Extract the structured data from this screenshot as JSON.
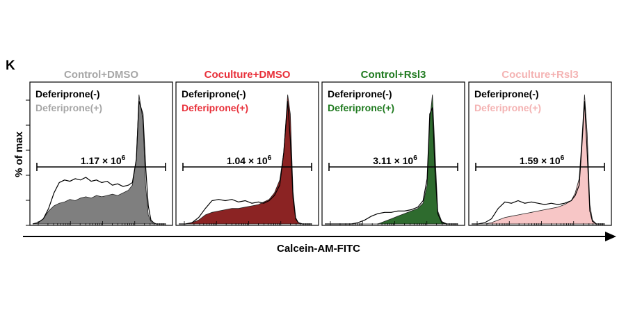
{
  "figure": {
    "panel_label": "K",
    "ylabel": "% of max",
    "xlabel": "Calcein-AM-FITC"
  },
  "chart_data": [
    {
      "type": "area",
      "title": "Control+DMSO",
      "title_color": "#a6a6a6",
      "legend": [
        {
          "name": "Deferiprone(-)",
          "color": "#000000"
        },
        {
          "name": "Deferiprone(+)",
          "color": "#a6a6a6"
        }
      ],
      "gate_label": "1.17 × 10",
      "gate_exponent": "6",
      "gate_range": [
        0.0,
        1.0
      ],
      "fill_color": "#7f7f7f",
      "x": [
        0.0,
        0.04,
        0.08,
        0.12,
        0.16,
        0.2,
        0.24,
        0.28,
        0.32,
        0.36,
        0.4,
        0.44,
        0.48,
        0.52,
        0.56,
        0.6,
        0.64,
        0.68,
        0.72,
        0.75,
        0.78,
        0.8,
        0.83,
        0.85,
        0.87,
        0.89,
        0.91,
        0.93,
        0.96,
        1.0
      ],
      "line_series": [
        0.0,
        0.01,
        0.04,
        0.12,
        0.24,
        0.32,
        0.34,
        0.33,
        0.35,
        0.34,
        0.36,
        0.33,
        0.34,
        0.32,
        0.33,
        0.3,
        0.31,
        0.29,
        0.3,
        0.32,
        0.5,
        0.95,
        0.85,
        0.45,
        0.14,
        0.03,
        0.01,
        0.0,
        0.0,
        0.0
      ],
      "filled_series": [
        0.0,
        0.01,
        0.04,
        0.1,
        0.14,
        0.16,
        0.17,
        0.19,
        0.18,
        0.2,
        0.21,
        0.2,
        0.22,
        0.21,
        0.22,
        0.23,
        0.22,
        0.24,
        0.26,
        0.3,
        0.5,
        1.0,
        0.8,
        0.3,
        0.07,
        0.02,
        0.0,
        0.0,
        0.0,
        0.0
      ]
    },
    {
      "type": "area",
      "title": "Coculture+DMSO",
      "title_color": "#e8303a",
      "legend": [
        {
          "name": "Deferiprone(-)",
          "color": "#000000"
        },
        {
          "name": "Deferiprone(+)",
          "color": "#e8303a"
        }
      ],
      "gate_label": "1.04 × 10",
      "gate_exponent": "6",
      "gate_range": [
        0.0,
        1.0
      ],
      "fill_color": "#8b2323",
      "x": [
        0.0,
        0.05,
        0.1,
        0.15,
        0.2,
        0.25,
        0.3,
        0.35,
        0.4,
        0.45,
        0.5,
        0.55,
        0.6,
        0.64,
        0.68,
        0.72,
        0.76,
        0.79,
        0.82,
        0.84,
        0.86,
        0.88,
        0.9,
        0.93,
        0.96,
        1.0
      ],
      "line_series": [
        0.0,
        0.0,
        0.01,
        0.05,
        0.12,
        0.18,
        0.19,
        0.18,
        0.19,
        0.17,
        0.18,
        0.16,
        0.17,
        0.16,
        0.18,
        0.22,
        0.3,
        0.55,
        0.95,
        0.65,
        0.2,
        0.04,
        0.01,
        0.0,
        0.0,
        0.0
      ],
      "filled_series": [
        0.0,
        0.0,
        0.01,
        0.03,
        0.07,
        0.09,
        0.1,
        0.11,
        0.12,
        0.12,
        0.13,
        0.14,
        0.15,
        0.17,
        0.19,
        0.24,
        0.34,
        0.55,
        1.0,
        0.85,
        0.25,
        0.05,
        0.01,
        0.0,
        0.0,
        0.0
      ]
    },
    {
      "type": "area",
      "title": "Control+Rsl3",
      "title_color": "#1f7a1f",
      "legend": [
        {
          "name": "Deferiprone(-)",
          "color": "#000000"
        },
        {
          "name": "Deferiprone(+)",
          "color": "#1f7a1f"
        }
      ],
      "gate_label": "3.11 × 10",
      "gate_exponent": "6",
      "gate_range": [
        0.0,
        1.0
      ],
      "fill_color": "#2e6b2e",
      "x": [
        0.0,
        0.1,
        0.2,
        0.25,
        0.3,
        0.35,
        0.4,
        0.45,
        0.5,
        0.55,
        0.6,
        0.65,
        0.7,
        0.74,
        0.77,
        0.79,
        0.81,
        0.83,
        0.85,
        0.88,
        0.92,
        1.0
      ],
      "line_series": [
        0.0,
        0.0,
        0.0,
        0.01,
        0.03,
        0.06,
        0.08,
        0.09,
        0.09,
        0.1,
        0.1,
        0.11,
        0.13,
        0.18,
        0.35,
        0.85,
        0.9,
        0.4,
        0.08,
        0.01,
        0.0,
        0.0
      ],
      "filled_series": [
        0.0,
        0.0,
        0.0,
        0.0,
        0.0,
        0.0,
        0.0,
        0.02,
        0.04,
        0.06,
        0.08,
        0.1,
        0.12,
        0.16,
        0.3,
        0.8,
        1.0,
        0.55,
        0.1,
        0.02,
        0.0,
        0.0
      ]
    },
    {
      "type": "area",
      "title": "Coculture+Rsl3",
      "title_color": "#f4b3b3",
      "legend": [
        {
          "name": "Deferiprone(-)",
          "color": "#000000"
        },
        {
          "name": "Deferiprone(+)",
          "color": "#f4b3b3"
        }
      ],
      "gate_label": "1.59 × 10",
      "gate_exponent": "6",
      "gate_range": [
        0.0,
        1.0
      ],
      "fill_color": "#f7c6c6",
      "x": [
        0.0,
        0.05,
        0.1,
        0.15,
        0.2,
        0.25,
        0.3,
        0.35,
        0.4,
        0.45,
        0.5,
        0.55,
        0.6,
        0.65,
        0.7,
        0.75,
        0.78,
        0.81,
        0.83,
        0.85,
        0.87,
        0.89,
        0.91,
        0.94,
        0.97,
        1.0
      ],
      "line_series": [
        0.0,
        0.0,
        0.01,
        0.04,
        0.12,
        0.17,
        0.16,
        0.18,
        0.16,
        0.17,
        0.16,
        0.15,
        0.16,
        0.15,
        0.16,
        0.18,
        0.22,
        0.3,
        0.6,
        0.95,
        0.55,
        0.1,
        0.02,
        0.0,
        0.0,
        0.0
      ],
      "filled_series": [
        0.0,
        0.0,
        0.0,
        0.01,
        0.03,
        0.05,
        0.06,
        0.07,
        0.08,
        0.09,
        0.1,
        0.11,
        0.12,
        0.13,
        0.15,
        0.18,
        0.24,
        0.35,
        0.65,
        1.0,
        0.7,
        0.15,
        0.03,
        0.0,
        0.0,
        0.0
      ]
    }
  ]
}
